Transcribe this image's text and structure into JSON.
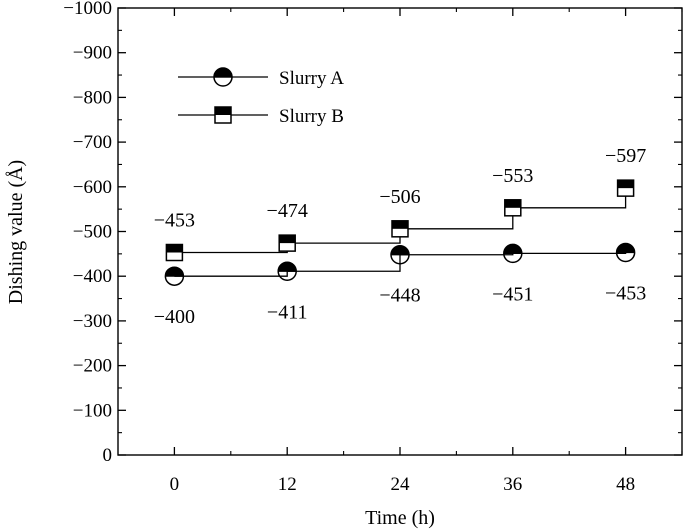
{
  "chart_data": {
    "type": "line",
    "xlabel": "Time (h)",
    "ylabel": "Dishing value (Å)",
    "x": [
      0,
      12,
      24,
      36,
      48
    ],
    "xticks": [
      "0",
      "12",
      "24",
      "36",
      "48"
    ],
    "xlim": [
      -6,
      54
    ],
    "ylim": [
      0,
      -1000
    ],
    "yticks": [
      "0",
      "−100",
      "−200",
      "−300",
      "−400",
      "−500",
      "−600",
      "−700",
      "−800",
      "−900",
      "−1000"
    ],
    "line_style": "step",
    "legend_position": "top-left",
    "grid": false,
    "series": [
      {
        "name": "Slurry A",
        "marker": "half-filled-circle",
        "values": [
          -400,
          -411,
          -448,
          -451,
          -453
        ],
        "labels": [
          "−400",
          "−411",
          "−448",
          "−451",
          "−453"
        ]
      },
      {
        "name": "Slurry B",
        "marker": "half-filled-square",
        "values": [
          -453,
          -474,
          -506,
          -553,
          -597
        ],
        "labels": [
          "−453",
          "−474",
          "−506",
          "−553",
          "−597"
        ]
      }
    ]
  }
}
